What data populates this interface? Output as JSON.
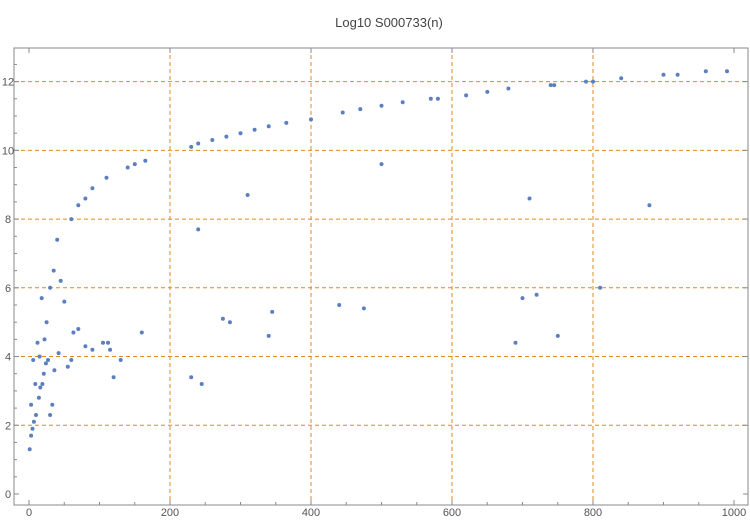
{
  "chart_data": {
    "type": "scatter",
    "title": "Log10 S000733(n)",
    "xlabel": "",
    "ylabel": "",
    "xlim": [
      0,
      1000
    ],
    "ylim": [
      0,
      12.6
    ],
    "x_ticks": [
      0,
      200,
      400,
      600,
      800,
      1000
    ],
    "y_ticks": [
      0,
      2,
      4,
      6,
      8,
      10,
      12
    ],
    "gridlines_x": [
      200,
      400,
      600,
      800
    ],
    "gridlines_y": [
      2,
      4,
      6,
      8,
      10,
      12
    ],
    "grid": true,
    "legend": "none",
    "point_color": "#5b7fc0",
    "grid_color": "#e08a1e",
    "series": [
      {
        "points": [
          [
            1,
            1.3
          ],
          [
            3,
            1.7
          ],
          [
            5,
            1.9
          ],
          [
            7,
            2.1
          ],
          [
            10,
            2.3
          ],
          [
            14,
            2.8
          ],
          [
            16,
            3.1
          ],
          [
            19,
            3.2
          ],
          [
            21,
            3.5
          ],
          [
            24,
            3.8
          ],
          [
            27,
            3.9
          ],
          [
            30,
            2.3
          ],
          [
            33,
            2.6
          ],
          [
            36,
            3.6
          ],
          [
            42,
            4.1
          ],
          [
            55,
            3.7
          ],
          [
            60,
            3.9
          ],
          [
            63,
            4.7
          ],
          [
            70,
            4.8
          ],
          [
            80,
            4.3
          ],
          [
            90,
            4.2
          ],
          [
            105,
            4.4
          ],
          [
            112,
            4.4
          ],
          [
            115,
            4.2
          ],
          [
            120,
            3.4
          ],
          [
            130,
            3.9
          ],
          [
            160,
            4.7
          ],
          [
            230,
            3.4
          ],
          [
            245,
            3.2
          ],
          [
            275,
            5.1
          ],
          [
            285,
            5.0
          ],
          [
            340,
            4.6
          ],
          [
            345,
            5.3
          ],
          [
            440,
            5.5
          ],
          [
            475,
            5.4
          ],
          [
            690,
            4.4
          ],
          [
            700,
            5.7
          ],
          [
            720,
            5.8
          ],
          [
            750,
            4.6
          ],
          [
            810,
            6.0
          ],
          [
            3,
            2.6
          ],
          [
            6,
            3.9
          ],
          [
            9,
            3.2
          ],
          [
            12,
            4.4
          ],
          [
            15,
            4.0
          ],
          [
            18,
            5.7
          ],
          [
            22,
            4.5
          ],
          [
            25,
            5.0
          ],
          [
            30,
            6.0
          ],
          [
            35,
            6.5
          ],
          [
            40,
            7.4
          ],
          [
            45,
            6.2
          ],
          [
            50,
            5.6
          ],
          [
            60,
            8.0
          ],
          [
            70,
            8.4
          ],
          [
            80,
            8.6
          ],
          [
            90,
            8.9
          ],
          [
            110,
            9.2
          ],
          [
            140,
            9.5
          ],
          [
            150,
            9.6
          ],
          [
            165,
            9.7
          ],
          [
            230,
            10.1
          ],
          [
            240,
            10.2
          ],
          [
            260,
            10.3
          ],
          [
            280,
            10.4
          ],
          [
            300,
            10.5
          ],
          [
            320,
            10.6
          ],
          [
            340,
            10.7
          ],
          [
            365,
            10.8
          ],
          [
            400,
            10.9
          ],
          [
            445,
            11.1
          ],
          [
            470,
            11.2
          ],
          [
            500,
            11.3
          ],
          [
            530,
            11.4
          ],
          [
            570,
            11.5
          ],
          [
            580,
            11.5
          ],
          [
            620,
            11.6
          ],
          [
            650,
            11.7
          ],
          [
            680,
            11.8
          ],
          [
            740,
            11.9
          ],
          [
            745,
            11.9
          ],
          [
            790,
            12.0
          ],
          [
            800,
            12.0
          ],
          [
            840,
            12.1
          ],
          [
            900,
            12.2
          ],
          [
            920,
            12.2
          ],
          [
            960,
            12.3
          ],
          [
            990,
            12.3
          ],
          [
            240,
            7.7
          ],
          [
            310,
            8.7
          ],
          [
            500,
            9.6
          ],
          [
            710,
            8.6
          ],
          [
            880,
            8.4
          ]
        ]
      }
    ]
  }
}
